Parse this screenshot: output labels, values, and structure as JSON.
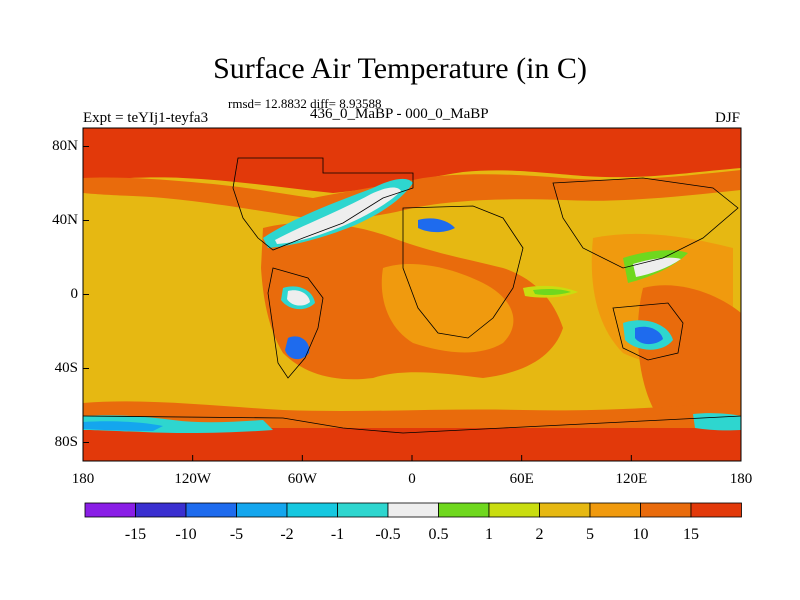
{
  "title": "Surface Air Temperature (in C)",
  "stats": "rmsd= 12.8832  diff= 8.93588",
  "expt": "Expt = teYIj1-teyfa3",
  "period": "436_0_MaBP - 000_0_MaBP",
  "season": "DJF",
  "map": {
    "lon_range": [
      -180,
      180
    ],
    "lat_range": [
      -90,
      90
    ],
    "x_ticks": [
      {
        "value": -180,
        "label": "180"
      },
      {
        "value": -120,
        "label": "120W"
      },
      {
        "value": -60,
        "label": "60W"
      },
      {
        "value": 0,
        "label": "0"
      },
      {
        "value": 60,
        "label": "60E"
      },
      {
        "value": 120,
        "label": "120E"
      },
      {
        "value": 180,
        "label": "180"
      }
    ],
    "y_ticks": [
      {
        "value": 80,
        "label": "80N"
      },
      {
        "value": 40,
        "label": "40N"
      },
      {
        "value": 0,
        "label": "0"
      },
      {
        "value": -40,
        "label": "40S"
      },
      {
        "value": -80,
        "label": "80S"
      }
    ]
  },
  "colorbar": {
    "labels": [
      "-15",
      "-10",
      "-5",
      "-2",
      "-1",
      "-0.5",
      "0.5",
      "1",
      "2",
      "5",
      "10",
      "15"
    ],
    "colors": [
      "#8a1ee6",
      "#3a2fd0",
      "#1e6bee",
      "#14a6ee",
      "#16c8e0",
      "#2ed6cf",
      "#eeeeee",
      "#6fd81e",
      "#c9dd10",
      "#e6b812",
      "#f09a0e",
      "#e96b0c",
      "#e2390a"
    ]
  }
}
